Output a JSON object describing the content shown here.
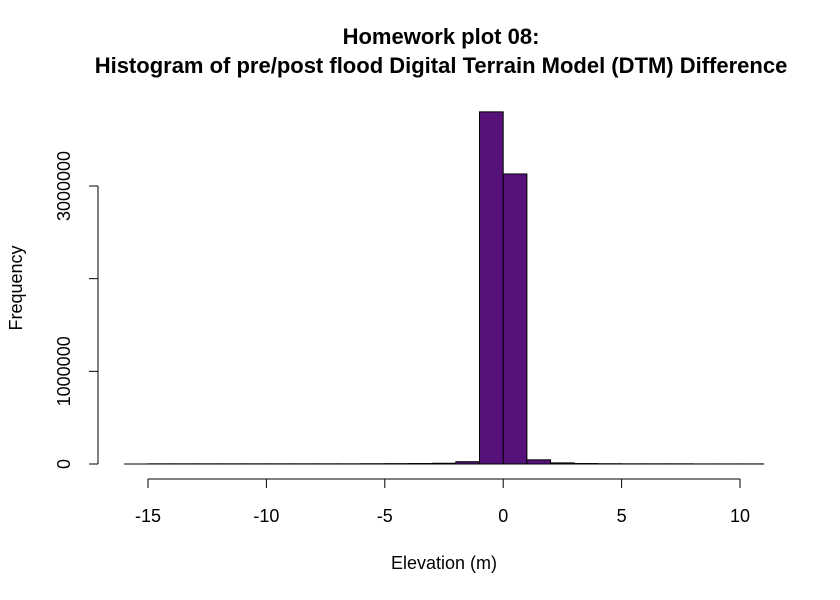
{
  "chart_data": {
    "type": "bar",
    "title_line1": "Homework plot 08:",
    "title_line2": "Histogram of pre/post flood Digital Terrain Model (DTM) Difference",
    "xlabel": "Elevation (m)",
    "ylabel": "Frequency",
    "xlim": [
      -16,
      11
    ],
    "ylim": [
      0,
      3780000
    ],
    "x_ticks": [
      -15,
      -10,
      -5,
      0,
      5,
      10
    ],
    "x_tick_labels": [
      "-15",
      "-10",
      "-5",
      "0",
      "5",
      "10"
    ],
    "y_ticks": [
      0,
      1000000,
      2000000,
      3000000
    ],
    "y_tick_labels": [
      "0",
      "1000000",
      "",
      "3000000"
    ],
    "bin_edges": [
      -15,
      -14,
      -13,
      -12,
      -11,
      -10,
      -9,
      -8,
      -7,
      -6,
      -5,
      -4,
      -3,
      -2,
      -1,
      0,
      1,
      2,
      3,
      4,
      5,
      6,
      7,
      8,
      9,
      10,
      11
    ],
    "values": [
      2000,
      2000,
      2000,
      2000,
      2000,
      2000,
      2000,
      2000,
      2000,
      3000,
      4000,
      5000,
      8000,
      25000,
      3800000,
      3130000,
      45000,
      12000,
      5000,
      3000,
      2000,
      2000,
      2000,
      1000,
      1000,
      1000
    ],
    "grid": false,
    "colors": {
      "bar_fill": "#56117a",
      "bar_stroke": "#000000"
    }
  }
}
